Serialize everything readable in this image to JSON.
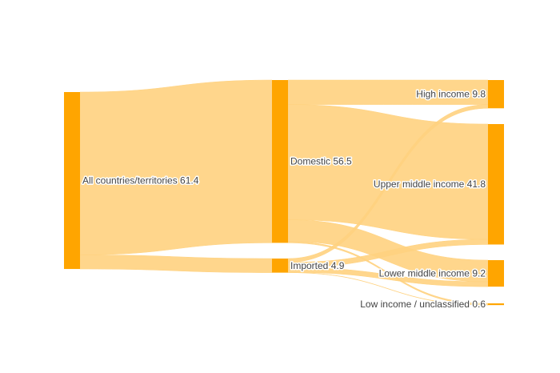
{
  "chart_data": {
    "type": "sankey",
    "colors": {
      "node": "#FFA500",
      "link": "#FFD27F"
    },
    "nodes": [
      {
        "id": "all",
        "label": "All countries/territories",
        "value": 61.4
      },
      {
        "id": "domestic",
        "label": "Domestic",
        "value": 56.5
      },
      {
        "id": "imported",
        "label": "Imported",
        "value": 4.9
      },
      {
        "id": "high",
        "label": "High income",
        "value": 9.8
      },
      {
        "id": "upper",
        "label": "Upper middle income",
        "value": 41.8
      },
      {
        "id": "lower",
        "label": "Lower middle income",
        "value": 9.2
      },
      {
        "id": "low",
        "label": "Low income / unclassified",
        "value": 0.6
      }
    ],
    "links": [
      {
        "source": "all",
        "target": "domestic",
        "value": 56.5
      },
      {
        "source": "all",
        "target": "imported",
        "value": 4.9
      },
      {
        "source": "domestic",
        "target": "high",
        "value": 8.5
      },
      {
        "source": "domestic",
        "target": "upper",
        "value": 40.0
      },
      {
        "source": "domestic",
        "target": "lower",
        "value": 7.5
      },
      {
        "source": "domestic",
        "target": "low",
        "value": 0.5
      },
      {
        "source": "imported",
        "target": "high",
        "value": 1.3
      },
      {
        "source": "imported",
        "target": "upper",
        "value": 1.8
      },
      {
        "source": "imported",
        "target": "lower",
        "value": 1.7
      },
      {
        "source": "imported",
        "target": "low",
        "value": 0.1
      }
    ]
  }
}
